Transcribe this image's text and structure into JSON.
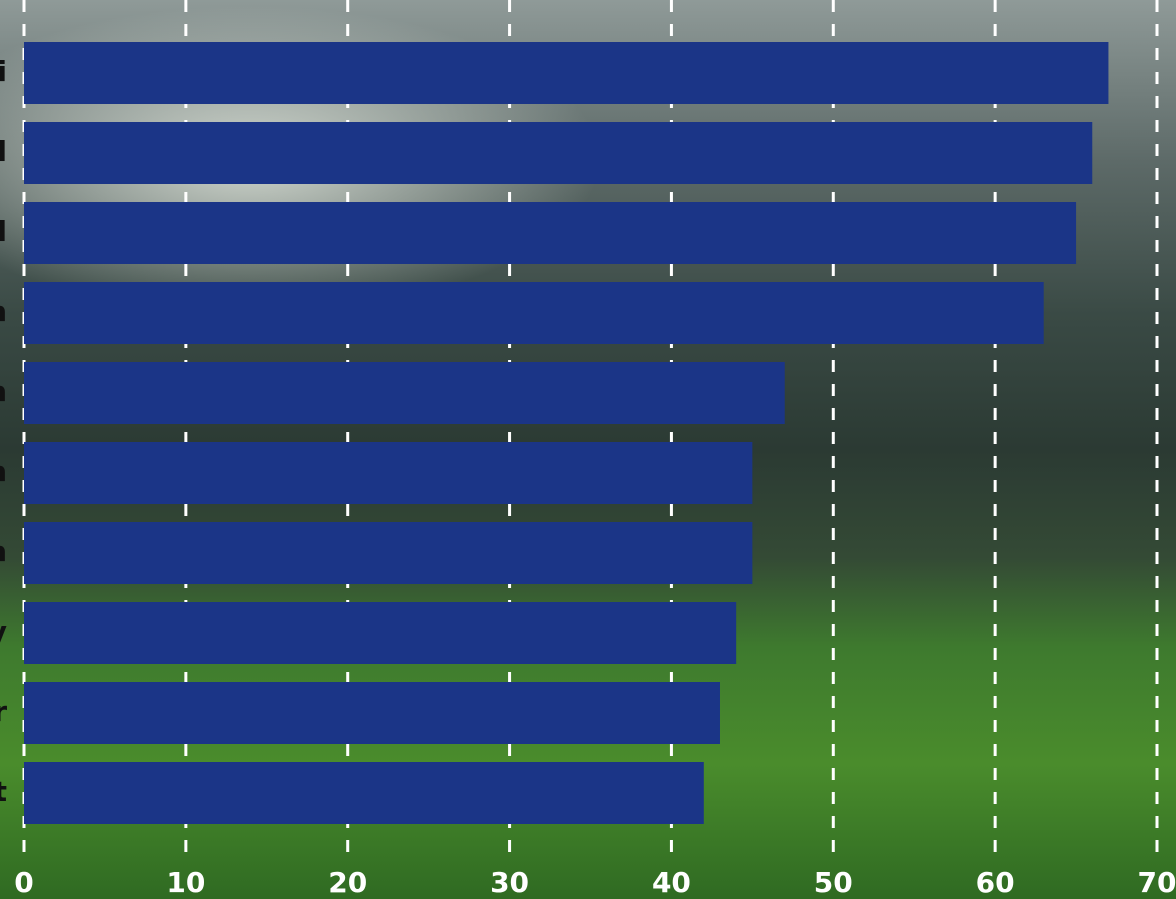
{
  "chart_data": {
    "type": "bar",
    "orientation": "horizontal",
    "categories": [
      "i",
      "l",
      "l",
      "n",
      "n",
      "n",
      "n",
      "y",
      "r",
      "t"
    ],
    "values": [
      67,
      66,
      65,
      63,
      47,
      45,
      45,
      44,
      43,
      42
    ],
    "color": "#1b3587",
    "xlim": [
      0,
      70
    ],
    "xticks": [
      0,
      10,
      20,
      30,
      40,
      50,
      60,
      70
    ],
    "grid": true
  }
}
